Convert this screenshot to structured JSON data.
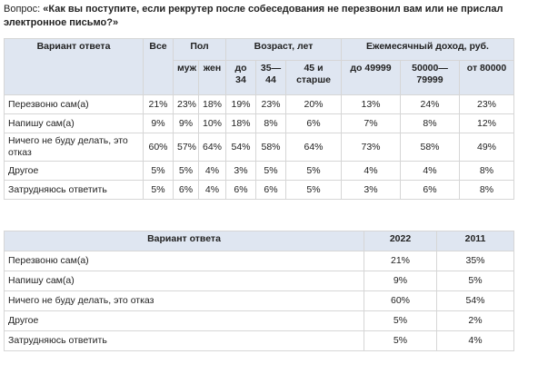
{
  "question": {
    "label": "Вопрос:",
    "text": "«Как вы поступите, если рекрутер после собеседования не перезвонил вам или не прислал электронное письмо?»"
  },
  "table1": {
    "header": {
      "answer": "Вариант ответа",
      "all": "Все",
      "groups": [
        {
          "title": "Пол",
          "columns": [
            "муж",
            "жен"
          ]
        },
        {
          "title": "Возраст, лет",
          "columns": [
            "до 34",
            "35—44",
            "45 и старше"
          ]
        },
        {
          "title": "Ежемесячный доход, руб.",
          "columns": [
            "до 49999",
            "50000—79999",
            "от 80000"
          ]
        }
      ]
    },
    "rows": [
      [
        "Перезвоню сам(а)",
        "21%",
        "23%",
        "18%",
        "19%",
        "23%",
        "20%",
        "13%",
        "24%",
        "23%"
      ],
      [
        "Напишу сам(а)",
        "9%",
        "9%",
        "10%",
        "18%",
        "8%",
        "6%",
        "7%",
        "8%",
        "12%"
      ],
      [
        "Ничего не буду делать, это отказ",
        "60%",
        "57%",
        "64%",
        "54%",
        "58%",
        "64%",
        "73%",
        "58%",
        "49%"
      ],
      [
        "Другое",
        "5%",
        "5%",
        "4%",
        "3%",
        "5%",
        "5%",
        "4%",
        "4%",
        "8%"
      ],
      [
        "Затрудняюсь ответить",
        "5%",
        "6%",
        "4%",
        "6%",
        "6%",
        "5%",
        "3%",
        "6%",
        "8%"
      ]
    ]
  },
  "table2": {
    "header": [
      "Вариант ответа",
      "2022",
      "2011"
    ],
    "rows": [
      [
        "Перезвоню сам(а)",
        "21%",
        "35%"
      ],
      [
        "Напишу сам(а)",
        "9%",
        "5%"
      ],
      [
        "Ничего не буду делать, это отказ",
        "60%",
        "54%"
      ],
      [
        "Другое",
        "5%",
        "2%"
      ],
      [
        "Затрудняюсь ответить",
        "5%",
        "4%"
      ]
    ]
  }
}
